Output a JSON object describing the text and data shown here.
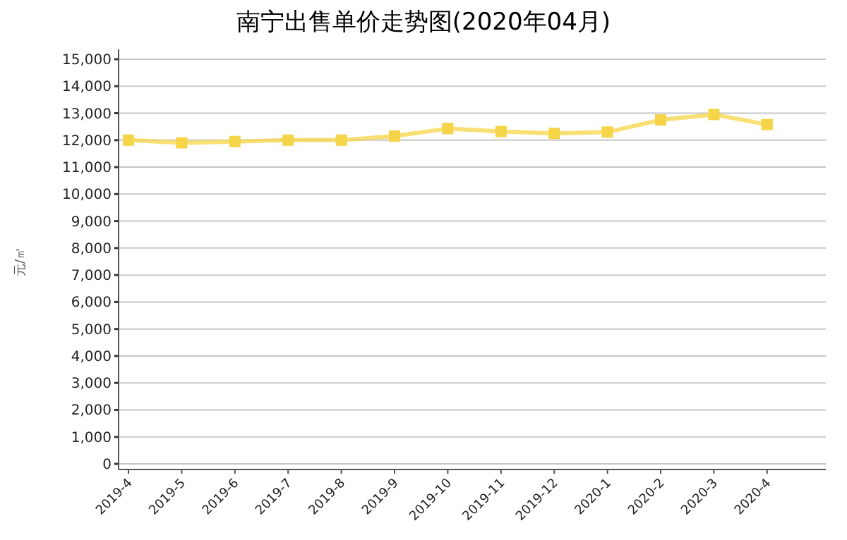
{
  "chart_data": {
    "type": "line",
    "title": "南宁出售单价走势图(2020年04月)",
    "ylabel": "元/㎡",
    "categories": [
      "2019-4",
      "2019-5",
      "2019-6",
      "2019-7",
      "2019-8",
      "2019-9",
      "2019-10",
      "2019-11",
      "2019-12",
      "2020-1",
      "2020-2",
      "2020-3",
      "2020-4"
    ],
    "series": [
      {
        "color": "#f5d547",
        "values": [
          12000,
          11900,
          11950,
          12000,
          12000,
          12150,
          12430,
          12320,
          12250,
          12300,
          12750,
          12950,
          12580
        ]
      }
    ],
    "ylim": [
      0,
      15000
    ],
    "yticks": [
      {
        "value": 0,
        "label": "0"
      },
      {
        "value": 1000,
        "label": "1,000"
      },
      {
        "value": 2000,
        "label": "2,000"
      },
      {
        "value": 3000,
        "label": "3,000"
      },
      {
        "value": 4000,
        "label": "4,000"
      },
      {
        "value": 5000,
        "label": "5,000"
      },
      {
        "value": 6000,
        "label": "6,000"
      },
      {
        "value": 7000,
        "label": "7,000"
      },
      {
        "value": 8000,
        "label": "8,000"
      },
      {
        "value": 9000,
        "label": "9,000"
      },
      {
        "value": 10000,
        "label": "10,000"
      },
      {
        "value": 11000,
        "label": "11,000"
      },
      {
        "value": 12000,
        "label": "12,000"
      },
      {
        "value": 13000,
        "label": "13,000"
      },
      {
        "value": 14000,
        "label": "14,000"
      },
      {
        "value": 15000,
        "label": "15,000"
      }
    ],
    "grid": "y",
    "marker": "square",
    "line_style": "solid"
  }
}
